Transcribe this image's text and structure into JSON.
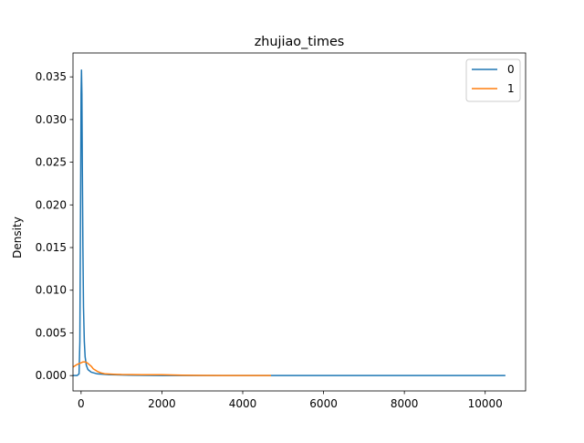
{
  "chart_data": {
    "type": "line",
    "title": "zhujiao_times",
    "xlabel": "",
    "ylabel": "Density",
    "xlim": [
      -200,
      11000
    ],
    "ylim": [
      -0.0018,
      0.0378
    ],
    "xticks": [
      0,
      2000,
      4000,
      6000,
      8000,
      10000
    ],
    "xtick_labels": [
      "0",
      "2000",
      "4000",
      "6000",
      "8000",
      "10000"
    ],
    "yticks": [
      0.0,
      0.005,
      0.01,
      0.015,
      0.02,
      0.025,
      0.03,
      0.035
    ],
    "ytick_labels": [
      "0.000",
      "0.005",
      "0.010",
      "0.015",
      "0.020",
      "0.025",
      "0.030",
      "0.035"
    ],
    "grid": false,
    "legend_position": "top-right",
    "series": [
      {
        "name": "0",
        "color": "#1f77b4",
        "x": [
          -200,
          -100,
          -50,
          -30,
          -15,
          0,
          10,
          20,
          30,
          45,
          60,
          80,
          100,
          130,
          170,
          250,
          400,
          700,
          1200,
          2000,
          3000,
          4000,
          5000,
          6000,
          7000,
          8000,
          9000,
          10000,
          10500
        ],
        "y": [
          0.0,
          0.0,
          0.0002,
          0.004,
          0.018,
          0.033,
          0.0358,
          0.033,
          0.025,
          0.015,
          0.008,
          0.004,
          0.0022,
          0.0012,
          0.0007,
          0.0004,
          0.0002,
          0.0001,
          5e-05,
          0.0,
          0.0,
          0.0,
          0.0,
          0.0,
          0.0,
          0.0,
          0.0,
          0.0,
          0.0
        ]
      },
      {
        "name": "1",
        "color": "#ff7f0e",
        "x": [
          -200,
          -100,
          0,
          50,
          100,
          150,
          200,
          250,
          300,
          400,
          500,
          600,
          800,
          1000,
          1500,
          2000,
          2500,
          3000,
          3500,
          4000,
          4700
        ],
        "y": [
          0.001,
          0.0013,
          0.0015,
          0.0016,
          0.0016,
          0.0015,
          0.0013,
          0.0011,
          0.0008,
          0.0005,
          0.0003,
          0.0002,
          0.00015,
          0.00012,
          0.0001,
          0.0001,
          5e-05,
          2e-05,
          1e-05,
          0.0,
          0.0
        ]
      }
    ]
  }
}
